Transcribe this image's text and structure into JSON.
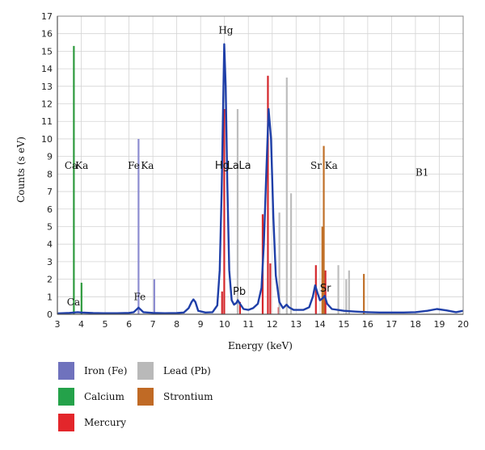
{
  "chart_data": {
    "type": "line",
    "title": "",
    "xlabel": "Energy (keV)",
    "ylabel": "Counts (s eV)",
    "xlim": [
      3,
      20
    ],
    "ylim": [
      0,
      17
    ],
    "x_ticks": [
      3,
      4,
      5,
      6,
      7,
      8,
      9,
      10,
      11,
      12,
      13,
      14,
      15,
      16,
      17,
      18,
      19,
      20
    ],
    "y_ticks": [
      0,
      1,
      2,
      3,
      4,
      5,
      6,
      7,
      8,
      9,
      10,
      11,
      12,
      13,
      14,
      15,
      16,
      17
    ],
    "grid": {
      "x": true,
      "y": true
    },
    "spectrum": {
      "color": "#1f3fa8",
      "points": [
        [
          3.0,
          0.05
        ],
        [
          3.5,
          0.08
        ],
        [
          3.7,
          0.1
        ],
        [
          3.85,
          0.12
        ],
        [
          4.0,
          0.1
        ],
        [
          4.5,
          0.07
        ],
        [
          5.0,
          0.06
        ],
        [
          5.5,
          0.06
        ],
        [
          6.0,
          0.08
        ],
        [
          6.2,
          0.12
        ],
        [
          6.3,
          0.25
        ],
        [
          6.4,
          0.38
        ],
        [
          6.5,
          0.25
        ],
        [
          6.6,
          0.12
        ],
        [
          7.0,
          0.08
        ],
        [
          7.5,
          0.06
        ],
        [
          8.0,
          0.07
        ],
        [
          8.3,
          0.1
        ],
        [
          8.5,
          0.35
        ],
        [
          8.62,
          0.7
        ],
        [
          8.7,
          0.85
        ],
        [
          8.78,
          0.7
        ],
        [
          8.9,
          0.2
        ],
        [
          9.2,
          0.1
        ],
        [
          9.5,
          0.12
        ],
        [
          9.7,
          0.5
        ],
        [
          9.8,
          2.5
        ],
        [
          9.88,
          7.0
        ],
        [
          9.94,
          11.5
        ],
        [
          9.99,
          15.4
        ],
        [
          10.05,
          13.0
        ],
        [
          10.12,
          7.5
        ],
        [
          10.2,
          2.5
        ],
        [
          10.3,
          0.8
        ],
        [
          10.4,
          0.55
        ],
        [
          10.5,
          0.65
        ],
        [
          10.56,
          0.8
        ],
        [
          10.65,
          0.6
        ],
        [
          10.8,
          0.3
        ],
        [
          11.0,
          0.25
        ],
        [
          11.2,
          0.35
        ],
        [
          11.4,
          0.6
        ],
        [
          11.55,
          1.5
        ],
        [
          11.65,
          4.0
        ],
        [
          11.75,
          8.0
        ],
        [
          11.85,
          11.7
        ],
        [
          11.95,
          10.0
        ],
        [
          12.05,
          5.5
        ],
        [
          12.15,
          2.2
        ],
        [
          12.3,
          0.7
        ],
        [
          12.45,
          0.35
        ],
        [
          12.6,
          0.55
        ],
        [
          12.7,
          0.4
        ],
        [
          12.9,
          0.25
        ],
        [
          13.3,
          0.25
        ],
        [
          13.55,
          0.4
        ],
        [
          13.7,
          1.0
        ],
        [
          13.8,
          1.65
        ],
        [
          13.9,
          1.2
        ],
        [
          14.0,
          0.8
        ],
        [
          14.1,
          0.9
        ],
        [
          14.2,
          1.05
        ],
        [
          14.3,
          0.6
        ],
        [
          14.5,
          0.3
        ],
        [
          15.0,
          0.2
        ],
        [
          15.5,
          0.15
        ],
        [
          16.0,
          0.12
        ],
        [
          16.5,
          0.1
        ],
        [
          17.0,
          0.1
        ],
        [
          17.5,
          0.1
        ],
        [
          18.0,
          0.12
        ],
        [
          18.5,
          0.2
        ],
        [
          18.9,
          0.3
        ],
        [
          19.3,
          0.22
        ],
        [
          19.7,
          0.12
        ],
        [
          20.0,
          0.2
        ]
      ]
    },
    "element_lines": [
      {
        "element": "Calcium",
        "color": "#2e9a3e",
        "lines": [
          [
            3.69,
            15.3
          ],
          [
            4.01,
            1.8
          ]
        ]
      },
      {
        "element": "Iron (Fe)",
        "color": "#8c8cd0",
        "lines": [
          [
            6.4,
            10.0
          ],
          [
            7.06,
            2.0
          ]
        ]
      },
      {
        "element": "Mercury",
        "color": "#d4262b",
        "lines": [
          [
            9.9,
            1.3
          ],
          [
            9.99,
            11.7
          ],
          [
            10.65,
            0.7
          ],
          [
            11.6,
            5.7
          ],
          [
            11.82,
            13.6
          ],
          [
            11.92,
            2.9
          ],
          [
            12.27,
            0.4
          ],
          [
            13.83,
            2.8
          ],
          [
            14.23,
            2.5
          ]
        ]
      },
      {
        "element": "Lead (Pb)",
        "color": "#bdbdbd",
        "lines": [
          [
            10.55,
            11.7
          ],
          [
            12.3,
            5.8
          ],
          [
            12.61,
            13.5
          ],
          [
            12.79,
            6.9
          ],
          [
            14.77,
            2.8
          ],
          [
            15.1,
            2.0
          ],
          [
            15.22,
            2.5
          ]
        ]
      },
      {
        "element": "Strontium",
        "color": "#c07028",
        "lines": [
          [
            14.1,
            5.0
          ],
          [
            14.16,
            9.6
          ],
          [
            15.84,
            2.3
          ]
        ]
      }
    ],
    "annotations": [
      {
        "text": "Ca",
        "x": 3.3,
        "y": 8.3,
        "style": "serif"
      },
      {
        "text": "Ka",
        "x": 3.75,
        "y": 8.3,
        "style": "serif"
      },
      {
        "text": "Fe",
        "x": 5.95,
        "y": 8.3,
        "style": "serif"
      },
      {
        "text": "Ka",
        "x": 6.5,
        "y": 8.3,
        "style": "serif"
      },
      {
        "text": "Hg",
        "x": 9.75,
        "y": 16.0,
        "style": "serif"
      },
      {
        "text": "Hg",
        "x": 9.6,
        "y": 8.3,
        "style": "sans"
      },
      {
        "text": "La",
        "x": 10.1,
        "y": 8.3,
        "style": "sans"
      },
      {
        "text": "La",
        "x": 10.6,
        "y": 8.3,
        "style": "sans"
      },
      {
        "text": "Sr",
        "x": 13.6,
        "y": 8.3,
        "style": "serif"
      },
      {
        "text": "Ka",
        "x": 14.2,
        "y": 8.3,
        "style": "serif"
      },
      {
        "text": "B1",
        "x": 18.0,
        "y": 7.9,
        "style": "serif"
      },
      {
        "text": "Ca",
        "x": 3.4,
        "y": 0.5,
        "style": "serif"
      },
      {
        "text": "Fe",
        "x": 6.2,
        "y": 0.8,
        "style": "serif"
      },
      {
        "text": "Pb",
        "x": 10.35,
        "y": 1.1,
        "style": "sans"
      },
      {
        "text": "Sr",
        "x": 14.0,
        "y": 1.3,
        "style": "sans"
      }
    ],
    "legend": {
      "placement": "bottom-left",
      "entries": [
        {
          "name": "Iron (Fe)",
          "color": "#6f72bd"
        },
        {
          "name": "Lead (Pb)",
          "color": "#b9b9b9"
        },
        {
          "name": "Calcium",
          "color": "#24a24a"
        },
        {
          "name": "Strontium",
          "color": "#c06a25"
        },
        {
          "name": "Mercury",
          "color": "#e3262b"
        }
      ]
    }
  }
}
